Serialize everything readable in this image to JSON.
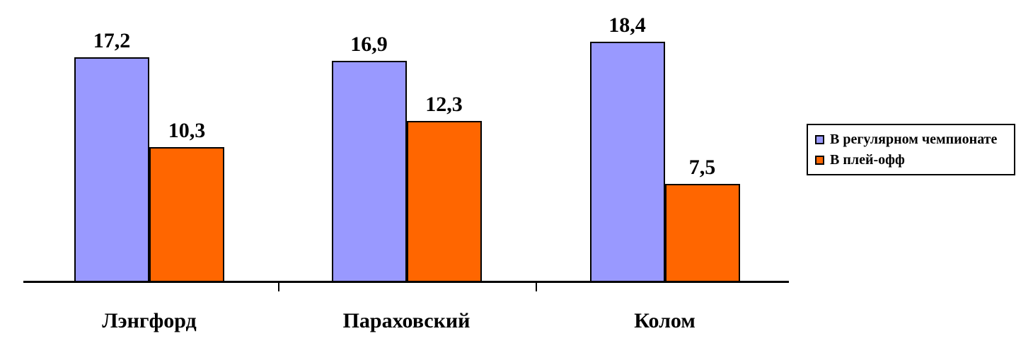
{
  "chart_data": {
    "type": "bar",
    "title": "",
    "xlabel": "",
    "ylabel": "",
    "categories": [
      "Лэнгфорд",
      "Параховский",
      "Колом"
    ],
    "series": [
      {
        "name": "В регулярном чемпионате",
        "color": "#9999FF",
        "values": [
          17.2,
          16.9,
          18.4
        ],
        "labels": [
          "17,2",
          "16,9",
          "18,4"
        ]
      },
      {
        "name": "В плей-офф",
        "color": "#FF6600",
        "values": [
          10.3,
          12.3,
          7.5
        ],
        "labels": [
          "10,3",
          "12,3",
          "7,5"
        ]
      }
    ],
    "ylim": [
      0,
      20
    ],
    "grid": false,
    "axis_visible": "x-only",
    "value_labels": true,
    "decimal_separator": ",",
    "legend_position": "right",
    "colors": {
      "axis": "#000000",
      "bar_border": "#000000",
      "text": "#000000",
      "background": "#FFFFFF"
    }
  }
}
